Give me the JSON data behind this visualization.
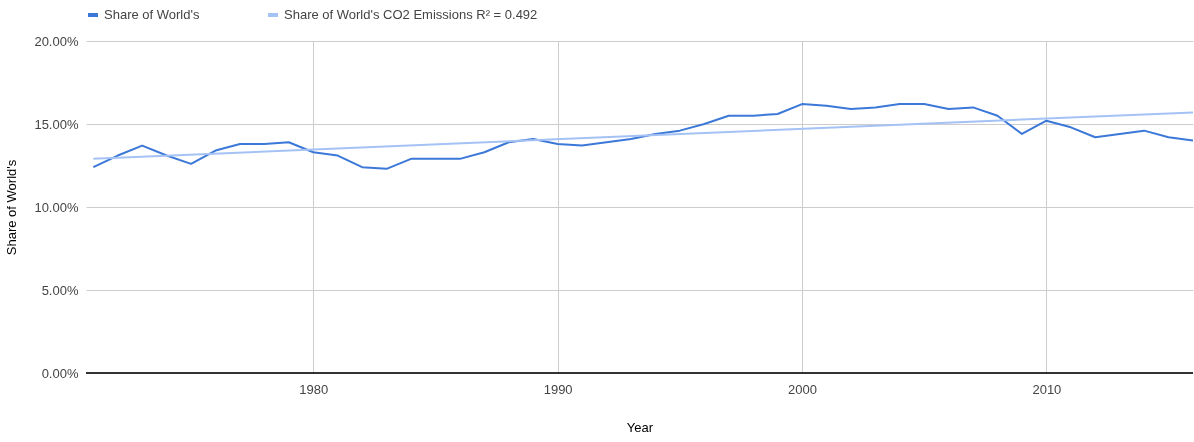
{
  "chart_data": {
    "type": "line",
    "xlabel": "Year",
    "ylabel": "Share of World's",
    "xlim": [
      1970.7,
      2016
    ],
    "xticks": [
      1980,
      1990,
      2000,
      2010
    ],
    "ylim": [
      0,
      20
    ],
    "yticks": [
      {
        "value": 0,
        "label": "0.00%"
      },
      {
        "value": 5,
        "label": "5.00%"
      },
      {
        "value": 10,
        "label": "10.00%"
      },
      {
        "value": 15,
        "label": "15.00%"
      },
      {
        "value": 20,
        "label": "20.00%"
      }
    ],
    "grid": true,
    "legend": "top",
    "marker": "none",
    "line_style": "solid",
    "series": [
      {
        "name": "Share of World's",
        "color": "#3c78d8",
        "x": [
          1971,
          1972,
          1973,
          1974,
          1975,
          1976,
          1977,
          1978,
          1979,
          1980,
          1981,
          1982,
          1983,
          1984,
          1985,
          1986,
          1987,
          1988,
          1989,
          1990,
          1991,
          1992,
          1993,
          1994,
          1995,
          1996,
          1997,
          1998,
          1999,
          2000,
          2001,
          2002,
          2003,
          2004,
          2005,
          2006,
          2007,
          2008,
          2009,
          2010,
          2011,
          2012,
          2013,
          2014,
          2015,
          2016
        ],
        "values": [
          12.4,
          13.1,
          13.7,
          13.1,
          12.6,
          13.4,
          13.8,
          13.8,
          13.9,
          13.3,
          13.1,
          12.4,
          12.3,
          12.9,
          12.9,
          12.9,
          13.3,
          13.9,
          14.1,
          13.8,
          13.7,
          13.9,
          14.1,
          14.4,
          14.6,
          15.0,
          15.5,
          15.5,
          15.6,
          16.2,
          16.1,
          15.9,
          16.0,
          16.2,
          16.2,
          15.9,
          16.0,
          15.5,
          14.4,
          15.2,
          14.8,
          14.2,
          14.4,
          14.6,
          14.2,
          14.0
        ]
      },
      {
        "name": "Share of World's CO2 Emissions R² = 0.492",
        "color": "#a4c2f4",
        "x": [
          1971,
          2016
        ],
        "values": [
          12.9,
          15.7
        ]
      }
    ]
  }
}
